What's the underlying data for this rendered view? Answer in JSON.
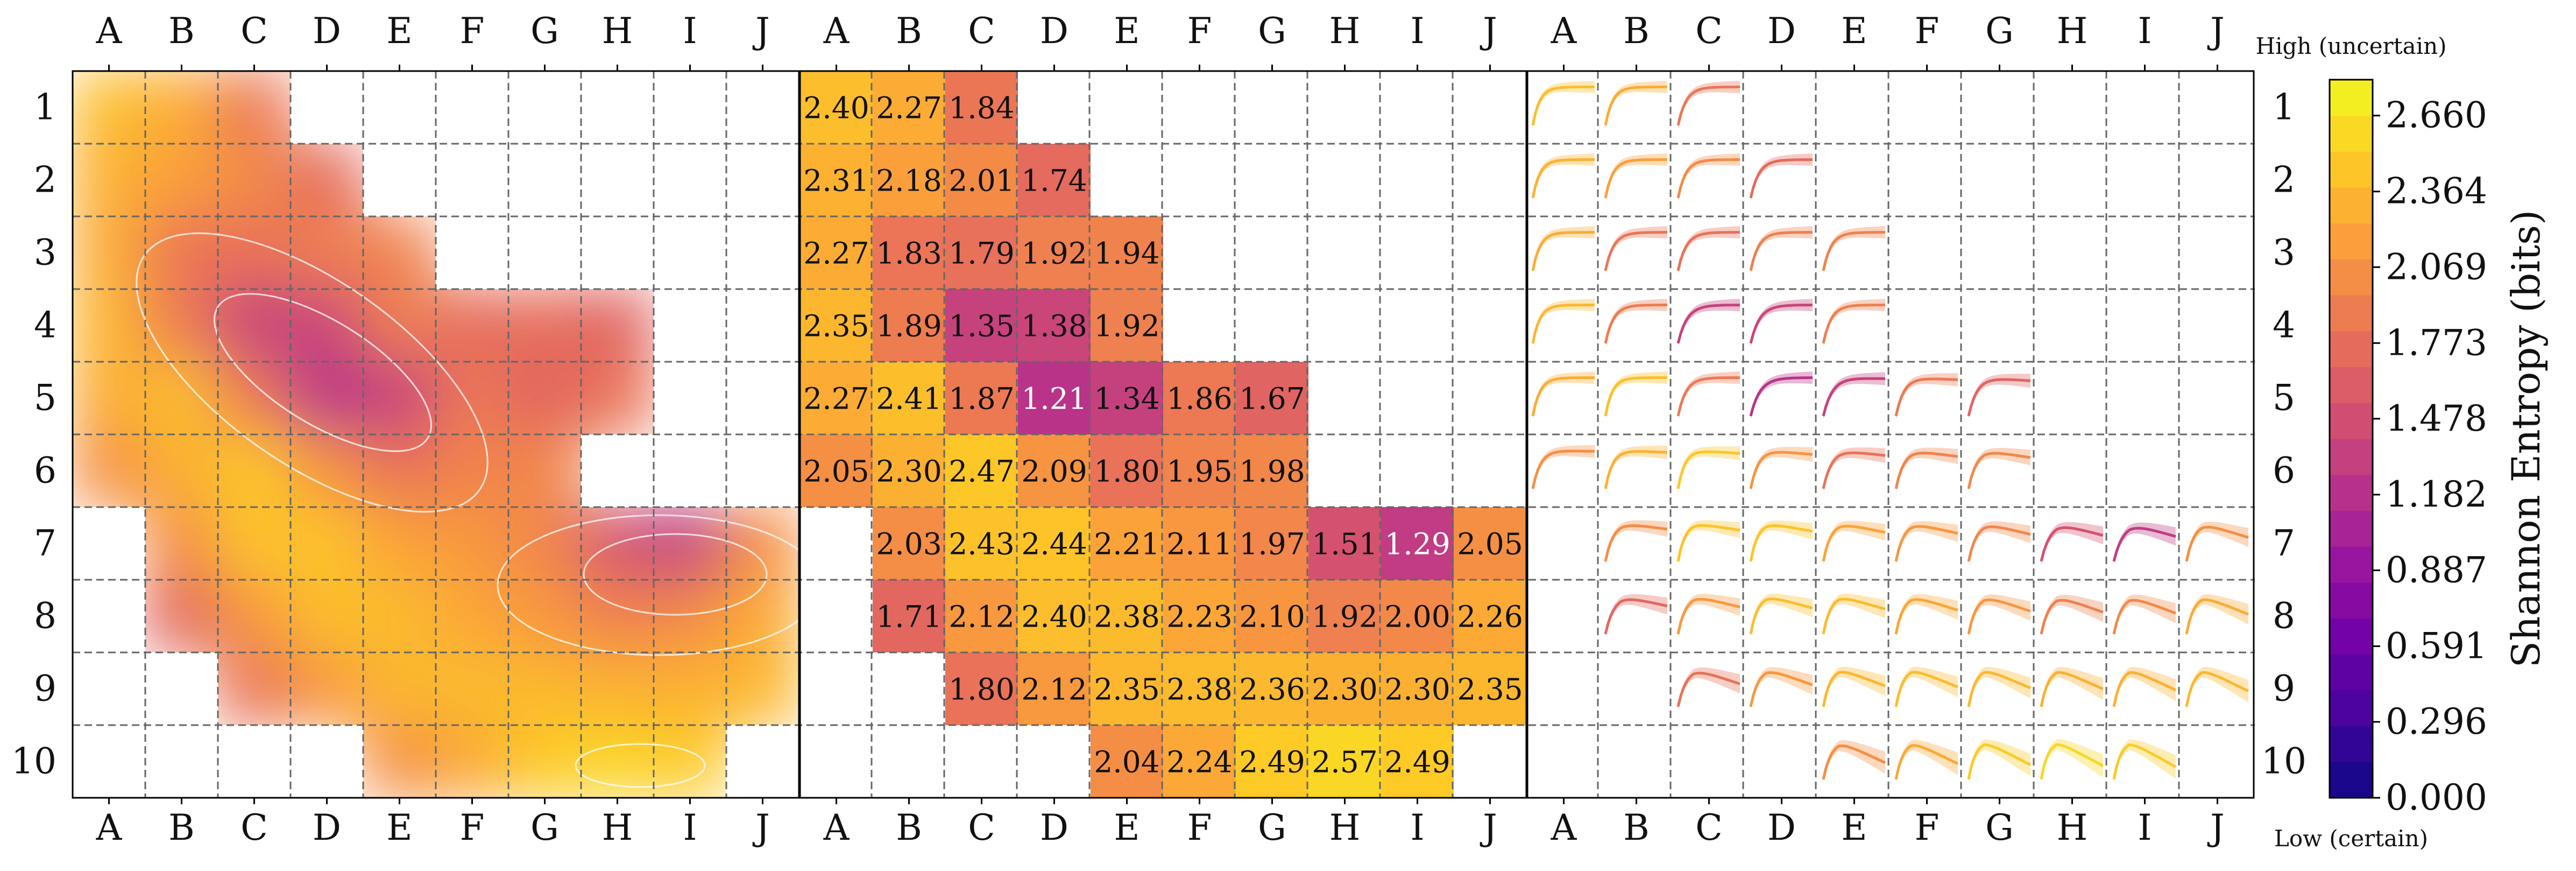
{
  "chart_data": {
    "type": "heatmap",
    "title": "",
    "columns": [
      "A",
      "B",
      "C",
      "D",
      "E",
      "F",
      "G",
      "H",
      "I",
      "J"
    ],
    "rows": [
      "1",
      "2",
      "3",
      "4",
      "5",
      "6",
      "7",
      "8",
      "9",
      "10"
    ],
    "panels": [
      "contour-map",
      "value-grid",
      "curve-grid"
    ],
    "values": [
      [
        2.4,
        2.27,
        1.84,
        null,
        null,
        null,
        null,
        null,
        null,
        null
      ],
      [
        2.31,
        2.18,
        2.01,
        1.74,
        null,
        null,
        null,
        null,
        null,
        null
      ],
      [
        2.27,
        1.83,
        1.79,
        1.92,
        1.94,
        null,
        null,
        null,
        null,
        null
      ],
      [
        2.35,
        1.89,
        1.35,
        1.38,
        1.92,
        null,
        null,
        null,
        null,
        null
      ],
      [
        2.27,
        2.41,
        1.87,
        1.21,
        1.34,
        1.86,
        1.67,
        null,
        null,
        null
      ],
      [
        2.05,
        2.3,
        2.47,
        2.09,
        1.8,
        1.95,
        1.98,
        null,
        null,
        null
      ],
      [
        null,
        2.03,
        2.43,
        2.44,
        2.21,
        2.11,
        1.97,
        1.51,
        1.29,
        2.05
      ],
      [
        null,
        1.71,
        2.12,
        2.4,
        2.38,
        2.23,
        2.1,
        1.92,
        2.0,
        2.26
      ],
      [
        null,
        null,
        1.8,
        2.12,
        2.35,
        2.38,
        2.36,
        2.3,
        2.3,
        2.35
      ],
      [
        null,
        null,
        null,
        null,
        2.04,
        2.24,
        2.49,
        2.57,
        2.49,
        null
      ]
    ],
    "contour_mask": [
      [
        1,
        1,
        1,
        0,
        0,
        0,
        0,
        0,
        0,
        0
      ],
      [
        1,
        1,
        1,
        1,
        0,
        0,
        0,
        0,
        0,
        0
      ],
      [
        1,
        1,
        1,
        1,
        1,
        0,
        0,
        0,
        0,
        0
      ],
      [
        1,
        1,
        1,
        1,
        1,
        1,
        1,
        1,
        0,
        0
      ],
      [
        1,
        1,
        1,
        1,
        1,
        1,
        1,
        1,
        0,
        0
      ],
      [
        1,
        1,
        1,
        1,
        1,
        1,
        1,
        0,
        0,
        0
      ],
      [
        0,
        1,
        1,
        1,
        1,
        1,
        1,
        1,
        1,
        1
      ],
      [
        0,
        1,
        1,
        1,
        1,
        1,
        1,
        1,
        1,
        1
      ],
      [
        0,
        0,
        1,
        1,
        1,
        1,
        1,
        1,
        1,
        1
      ],
      [
        0,
        0,
        0,
        0,
        1,
        1,
        1,
        1,
        1,
        0
      ]
    ],
    "colorbar": {
      "label": "Shannon Entropy (bits)",
      "top_note": "High (uncertain)",
      "bottom_note": "Low (certain)",
      "min": 0.0,
      "max": 2.8,
      "ticks": [
        0.0,
        0.296,
        0.591,
        0.887,
        1.182,
        1.478,
        1.773,
        2.069,
        2.364,
        2.66
      ],
      "tick_labels": [
        "0.000",
        "0.296",
        "0.591",
        "0.887",
        "1.182",
        "1.478",
        "1.773",
        "2.069",
        "2.364",
        "2.660"
      ],
      "colormap": [
        "#0d0887",
        "#46039f",
        "#7201a8",
        "#9c179e",
        "#bd3786",
        "#d8576b",
        "#ed7953",
        "#fb9f3a",
        "#fdca26",
        "#f0f921"
      ]
    },
    "grid": true,
    "grid_style": "dashed"
  }
}
